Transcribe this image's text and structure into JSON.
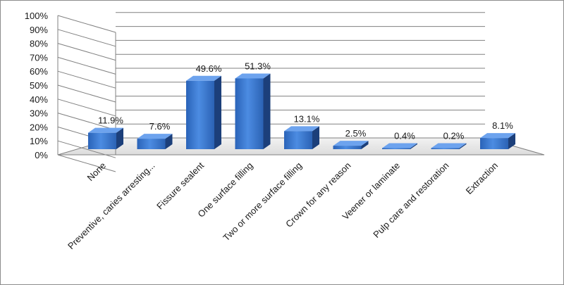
{
  "chart_data": {
    "type": "bar",
    "title": "",
    "xlabel": "",
    "ylabel": "",
    "ylim": [
      0,
      100
    ],
    "ytick_labels": [
      "0%",
      "10%",
      "20%",
      "30%",
      "40%",
      "50%",
      "60%",
      "70%",
      "80%",
      "90%",
      "100%"
    ],
    "categories": [
      "None",
      "Preventive, caries arresting...",
      "Fissure sealent",
      "One surface filling",
      "Two or more surface filling",
      "Crown for any reason",
      "Veener or laminate",
      "Pulp care and restoration",
      "Extraction"
    ],
    "values": [
      11.9,
      7.6,
      49.6,
      51.3,
      13.1,
      2.5,
      0.4,
      0.2,
      8.1
    ],
    "data_labels": [
      "11.9%",
      "7.6%",
      "49.6%",
      "51.3%",
      "13.1%",
      "2.5%",
      "0.4%",
      "0.2%",
      "8.1%"
    ],
    "grid": true,
    "legend": "none",
    "style": "3d-column",
    "colors": {
      "bar_front": "#2f6fc8",
      "bar_front_light": "#4a8ae0",
      "bar_side": "#1c3f7a",
      "bar_top": "#6da3ee",
      "gridline": "#808080",
      "wall": "#ffffff",
      "floor": "#e8e8e8"
    }
  }
}
